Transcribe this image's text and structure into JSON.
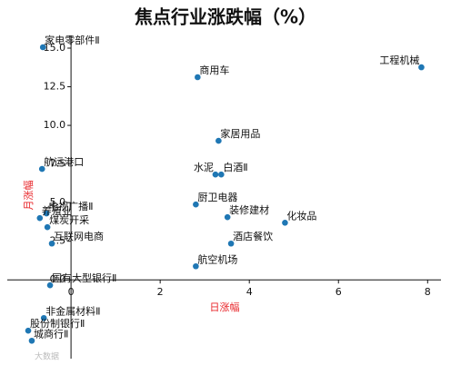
{
  "chart_data": {
    "type": "scatter",
    "title": "焦点行业涨跌幅（%）",
    "xlabel": "日涨幅",
    "ylabel": "月涨幅",
    "color": "#1f77b4",
    "label_color": "#e8262a",
    "labels": [
      "家电零部件Ⅱ",
      "工程机械",
      "商用车",
      "家居用品",
      "航运港口",
      "水泥",
      "白酒Ⅱ",
      "厨卫电器",
      "电视广播Ⅱ",
      "养殖业",
      "装修建材",
      "化妆品",
      "煤炭开采",
      "酒店餐饮",
      "互联网电商",
      "航空机场",
      "国有大型银行Ⅱ",
      "非金属材料Ⅱ",
      "股份制银行Ⅱ",
      "城商行Ⅱ"
    ],
    "x": [
      -0.63,
      7.86,
      2.84,
      3.31,
      -0.65,
      3.24,
      3.37,
      2.8,
      -0.55,
      -0.7,
      3.51,
      4.8,
      -0.53,
      3.59,
      -0.43,
      2.8,
      -0.47,
      -0.61,
      -0.96,
      -0.88
    ],
    "values": [
      15.06,
      13.76,
      13.12,
      9.0,
      7.18,
      6.82,
      6.82,
      4.88,
      4.3,
      4.0,
      4.06,
      3.7,
      3.41,
      2.35,
      2.35,
      0.88,
      -0.35,
      -2.47,
      -3.29,
      -3.94
    ],
    "xlim": [
      -1.43,
      8.3
    ],
    "ylim": [
      -5.1,
      15.8
    ],
    "xticks": [
      0,
      2,
      4,
      6,
      8
    ],
    "yticks": [
      {
        "value": 0,
        "label": "0.0"
      },
      {
        "value": 2.5,
        "label": "2.5"
      },
      {
        "value": 5,
        "label": "5.0"
      },
      {
        "value": 7.5,
        "label": "7.5"
      },
      {
        "value": 10,
        "label": "10.0"
      },
      {
        "value": 12.5,
        "label": "12.5"
      },
      {
        "value": 15,
        "label": "15.0"
      }
    ],
    "watermark": "大数据"
  }
}
